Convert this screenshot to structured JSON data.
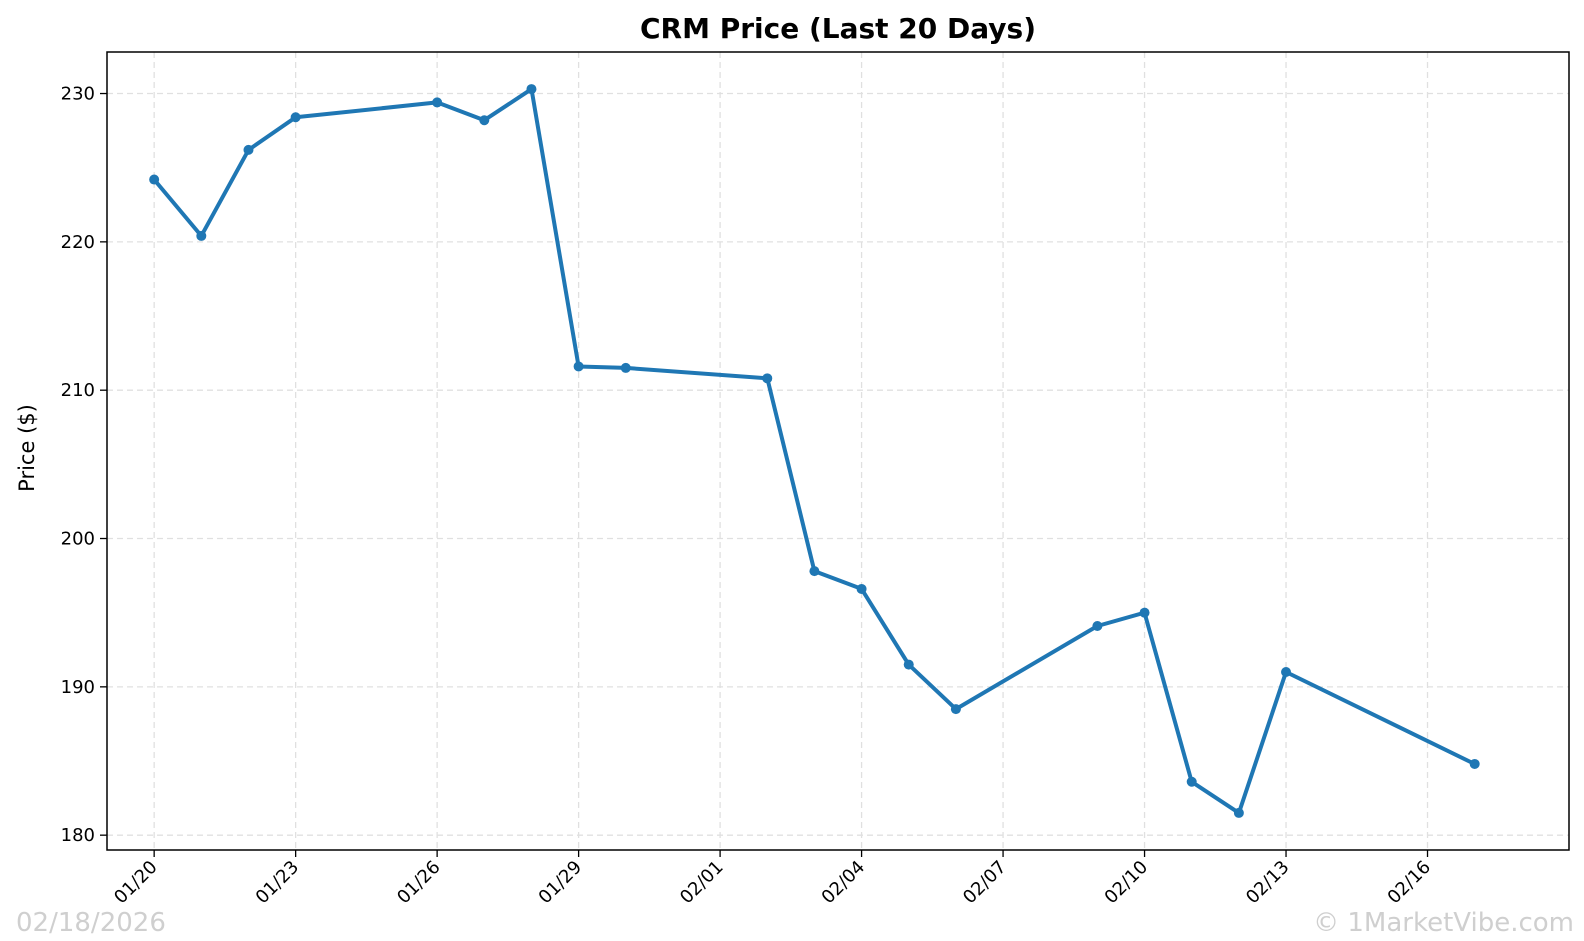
{
  "chart_data": {
    "type": "line",
    "title": "CRM Price (Last 20 Days)",
    "xlabel": "",
    "ylabel": "Price ($)",
    "ylim": [
      179,
      232.8
    ],
    "xlim": [
      "2026-01-19",
      "2026-02-19"
    ],
    "yticks": [
      180,
      190,
      200,
      210,
      220,
      230
    ],
    "xticks": [
      {
        "date": "2026-01-20",
        "label": "01/20"
      },
      {
        "date": "2026-01-23",
        "label": "01/23"
      },
      {
        "date": "2026-01-26",
        "label": "01/26"
      },
      {
        "date": "2026-01-29",
        "label": "01/29"
      },
      {
        "date": "2026-02-01",
        "label": "02/01"
      },
      {
        "date": "2026-02-04",
        "label": "02/04"
      },
      {
        "date": "2026-02-07",
        "label": "02/07"
      },
      {
        "date": "2026-02-10",
        "label": "02/10"
      },
      {
        "date": "2026-02-13",
        "label": "02/13"
      },
      {
        "date": "2026-02-16",
        "label": "02/16"
      }
    ],
    "grid": true,
    "color": "#1f77b4",
    "points": [
      {
        "date": "2026-01-20",
        "value": 224.2
      },
      {
        "date": "2026-01-21",
        "value": 220.4
      },
      {
        "date": "2026-01-22",
        "value": 226.2
      },
      {
        "date": "2026-01-23",
        "value": 228.4
      },
      {
        "date": "2026-01-26",
        "value": 229.4
      },
      {
        "date": "2026-01-27",
        "value": 228.2
      },
      {
        "date": "2026-01-28",
        "value": 230.3
      },
      {
        "date": "2026-01-29",
        "value": 211.6
      },
      {
        "date": "2026-01-30",
        "value": 211.5
      },
      {
        "date": "2026-02-02",
        "value": 210.8
      },
      {
        "date": "2026-02-03",
        "value": 197.8
      },
      {
        "date": "2026-02-04",
        "value": 196.6
      },
      {
        "date": "2026-02-05",
        "value": 191.5
      },
      {
        "date": "2026-02-06",
        "value": 188.5
      },
      {
        "date": "2026-02-09",
        "value": 194.1
      },
      {
        "date": "2026-02-10",
        "value": 195.0
      },
      {
        "date": "2026-02-11",
        "value": 183.6
      },
      {
        "date": "2026-02-12",
        "value": 181.5
      },
      {
        "date": "2026-02-13",
        "value": 191.0
      },
      {
        "date": "2026-02-17",
        "value": 184.8
      }
    ]
  },
  "watermark": {
    "date_text": "02/18/2026",
    "brand_text": "© 1MarketVibe.com"
  }
}
